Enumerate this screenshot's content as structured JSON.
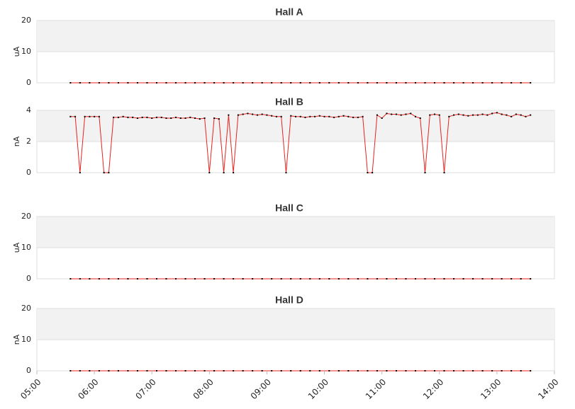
{
  "chart_data": [
    {
      "type": "line",
      "title": "Hall A",
      "y_label": "uA",
      "color": "#e8231f",
      "marker_color": "#000000",
      "xlim": [
        "05:00",
        "14:00"
      ],
      "ylim": [
        0,
        20
      ],
      "yticks": [
        0,
        10,
        20
      ],
      "x": [
        "05:35",
        "05:45",
        "05:55",
        "06:05",
        "06:15",
        "06:25",
        "06:35",
        "06:45",
        "06:55",
        "07:05",
        "07:15",
        "07:25",
        "07:35",
        "07:45",
        "07:55",
        "08:05",
        "08:15",
        "08:25",
        "08:35",
        "08:45",
        "08:55",
        "09:05",
        "09:15",
        "09:25",
        "09:35",
        "09:45",
        "09:55",
        "10:05",
        "10:15",
        "10:25",
        "10:35",
        "10:45",
        "10:55",
        "11:05",
        "11:15",
        "11:25",
        "11:35",
        "11:45",
        "11:55",
        "12:05",
        "12:15",
        "12:25",
        "12:35",
        "12:45",
        "12:55",
        "13:05",
        "13:15",
        "13:25",
        "13:35"
      ],
      "values": [
        0,
        0,
        0,
        0,
        0,
        0,
        0,
        0,
        0,
        0,
        0,
        0,
        0,
        0,
        0,
        0,
        0,
        0,
        0,
        0,
        0,
        0,
        0,
        0,
        0,
        0,
        0,
        0,
        0,
        0,
        0,
        0,
        0,
        0,
        0,
        0,
        0,
        0,
        0,
        0,
        0,
        0,
        0,
        0,
        0,
        0,
        0,
        0,
        0
      ]
    },
    {
      "type": "line",
      "title": "Hall B",
      "y_label": "nA",
      "color": "#e8231f",
      "marker_color": "#000000",
      "xlim": [
        "05:00",
        "14:00"
      ],
      "ylim": [
        0,
        4
      ],
      "yticks": [
        0,
        2,
        4
      ],
      "x": [
        "05:35",
        "05:40",
        "05:45",
        "05:50",
        "05:55",
        "06:00",
        "06:05",
        "06:10",
        "06:15",
        "06:20",
        "06:25",
        "06:30",
        "06:35",
        "06:40",
        "06:45",
        "06:50",
        "06:55",
        "07:00",
        "07:05",
        "07:10",
        "07:15",
        "07:20",
        "07:25",
        "07:30",
        "07:35",
        "07:40",
        "07:45",
        "07:50",
        "07:55",
        "08:00",
        "08:05",
        "08:10",
        "08:15",
        "08:20",
        "08:25",
        "08:30",
        "08:35",
        "08:40",
        "08:45",
        "08:50",
        "08:55",
        "09:00",
        "09:05",
        "09:10",
        "09:15",
        "09:20",
        "09:25",
        "09:30",
        "09:35",
        "09:40",
        "09:45",
        "09:50",
        "09:55",
        "10:00",
        "10:05",
        "10:10",
        "10:15",
        "10:20",
        "10:25",
        "10:30",
        "10:35",
        "10:40",
        "10:45",
        "10:50",
        "10:55",
        "11:00",
        "11:05",
        "11:10",
        "11:15",
        "11:20",
        "11:25",
        "11:30",
        "11:35",
        "11:40",
        "11:45",
        "11:50",
        "11:55",
        "12:00",
        "12:05",
        "12:10",
        "12:15",
        "12:20",
        "12:25",
        "12:30",
        "12:35",
        "12:40",
        "12:45",
        "12:50",
        "12:55",
        "13:00",
        "13:05",
        "13:10",
        "13:15",
        "13:20",
        "13:25",
        "13:30",
        "13:35"
      ],
      "values": [
        3.6,
        3.6,
        0,
        3.6,
        3.6,
        3.6,
        3.6,
        0,
        0,
        3.55,
        3.55,
        3.6,
        3.55,
        3.55,
        3.5,
        3.55,
        3.55,
        3.5,
        3.55,
        3.55,
        3.5,
        3.5,
        3.55,
        3.5,
        3.5,
        3.55,
        3.5,
        3.45,
        3.5,
        0,
        3.5,
        3.45,
        0,
        3.7,
        0,
        3.7,
        3.75,
        3.8,
        3.75,
        3.7,
        3.75,
        3.7,
        3.65,
        3.6,
        3.6,
        0,
        3.65,
        3.6,
        3.6,
        3.55,
        3.6,
        3.6,
        3.65,
        3.6,
        3.6,
        3.55,
        3.6,
        3.65,
        3.6,
        3.55,
        3.55,
        3.6,
        0,
        0,
        3.7,
        3.5,
        3.8,
        3.75,
        3.75,
        3.7,
        3.75,
        3.8,
        3.6,
        3.5,
        0,
        3.7,
        3.75,
        3.7,
        0,
        3.6,
        3.7,
        3.75,
        3.7,
        3.65,
        3.7,
        3.7,
        3.75,
        3.7,
        3.8,
        3.85,
        3.75,
        3.7,
        3.6,
        3.75,
        3.7,
        3.6,
        3.7
      ]
    },
    {
      "type": "line",
      "title": "Hall C",
      "y_label": "uA",
      "color": "#e8231f",
      "marker_color": "#000000",
      "xlim": [
        "05:00",
        "14:00"
      ],
      "ylim": [
        0,
        20
      ],
      "yticks": [
        0,
        10,
        20
      ],
      "x": [
        "05:35",
        "05:45",
        "05:55",
        "06:05",
        "06:15",
        "06:25",
        "06:35",
        "06:45",
        "06:55",
        "07:05",
        "07:15",
        "07:25",
        "07:35",
        "07:45",
        "07:55",
        "08:05",
        "08:15",
        "08:25",
        "08:35",
        "08:45",
        "08:55",
        "09:05",
        "09:15",
        "09:25",
        "09:35",
        "09:45",
        "09:55",
        "10:05",
        "10:15",
        "10:25",
        "10:35",
        "10:45",
        "10:55",
        "11:05",
        "11:15",
        "11:25",
        "11:35",
        "11:45",
        "11:55",
        "12:05",
        "12:15",
        "12:25",
        "12:35",
        "12:45",
        "12:55",
        "13:05",
        "13:15",
        "13:25",
        "13:35"
      ],
      "values": [
        0,
        0,
        0,
        0,
        0,
        0,
        0,
        0,
        0,
        0,
        0,
        0,
        0,
        0,
        0,
        0,
        0,
        0,
        0,
        0,
        0,
        0,
        0,
        0,
        0,
        0,
        0,
        0,
        0,
        0,
        0,
        0,
        0,
        0,
        0,
        0,
        0,
        0,
        0,
        0,
        0,
        0,
        0,
        0,
        0,
        0,
        0,
        0,
        0
      ]
    },
    {
      "type": "line",
      "title": "Hall D",
      "y_label": "nA",
      "color": "#e8231f",
      "marker_color": "#000000",
      "xlim": [
        "05:00",
        "14:00"
      ],
      "ylim": [
        0,
        20
      ],
      "yticks": [
        0,
        10,
        20
      ],
      "xticks": [
        "05:00",
        "06:00",
        "07:00",
        "08:00",
        "09:00",
        "10:00",
        "11:00",
        "12:00",
        "13:00",
        "14:00"
      ],
      "x": [
        "05:35",
        "05:45",
        "05:55",
        "06:05",
        "06:15",
        "06:25",
        "06:35",
        "06:45",
        "06:55",
        "07:05",
        "07:15",
        "07:25",
        "07:35",
        "07:45",
        "07:55",
        "08:05",
        "08:15",
        "08:25",
        "08:35",
        "08:45",
        "08:55",
        "09:05",
        "09:15",
        "09:25",
        "09:35",
        "09:45",
        "09:55",
        "10:05",
        "10:15",
        "10:25",
        "10:35",
        "10:45",
        "10:55",
        "11:05",
        "11:15",
        "11:25",
        "11:35",
        "11:45",
        "11:55",
        "12:05",
        "12:15",
        "12:25",
        "12:35",
        "12:45",
        "12:55",
        "13:05",
        "13:15",
        "13:25",
        "13:35"
      ],
      "values": [
        0,
        0,
        0,
        0,
        0,
        0,
        0,
        0,
        0,
        0,
        0,
        0,
        0,
        0,
        0,
        0,
        0,
        0,
        0,
        0,
        0,
        0,
        0,
        0,
        0,
        0,
        0,
        0,
        0,
        0,
        0,
        0,
        0,
        0,
        0,
        0,
        0,
        0,
        0,
        0,
        0,
        0,
        0,
        0,
        0,
        0,
        0,
        0,
        0
      ]
    }
  ]
}
